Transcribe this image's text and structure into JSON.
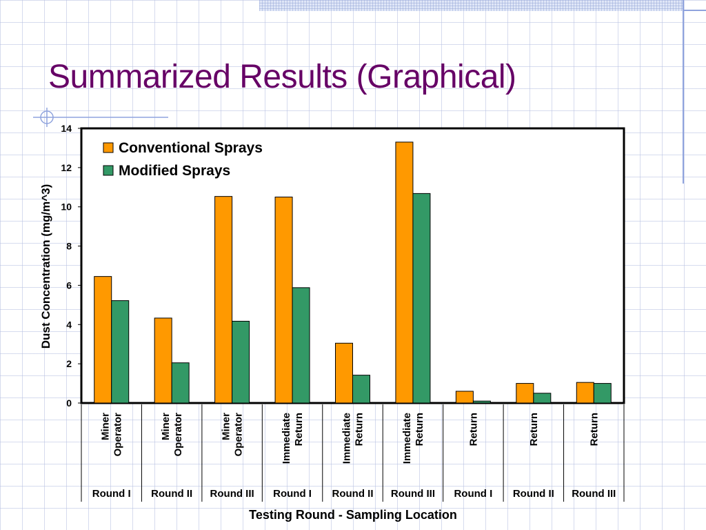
{
  "slide": {
    "title": "Summarized Results (Graphical)"
  },
  "colors": {
    "title": "#660066",
    "conventional": "#ff9900",
    "modified": "#339966",
    "ornament": "#8fa3dd"
  },
  "chart_data": {
    "type": "bar",
    "title": "",
    "xlabel": "Testing Round - Sampling Location",
    "ylabel": "Dust Concentration (mg/m^3)",
    "ylim": [
      0,
      14
    ],
    "yticks": [
      0,
      2,
      4,
      6,
      8,
      10,
      12,
      14
    ],
    "grid": false,
    "legend": "top-left",
    "categories": [
      {
        "location": [
          "Miner",
          "Operator"
        ],
        "round": "Round I"
      },
      {
        "location": [
          "Miner",
          "Operator"
        ],
        "round": "Round II"
      },
      {
        "location": [
          "Miner",
          "Operator"
        ],
        "round": "Round III"
      },
      {
        "location": [
          "Immediate",
          "Return"
        ],
        "round": "Round I"
      },
      {
        "location": [
          "Immediate",
          "Return"
        ],
        "round": "Round II"
      },
      {
        "location": [
          "Immediate",
          "Return"
        ],
        "round": "Round III"
      },
      {
        "location": [
          "Return"
        ],
        "round": "Round I"
      },
      {
        "location": [
          "Return"
        ],
        "round": "Round II"
      },
      {
        "location": [
          "Return"
        ],
        "round": "Round III"
      }
    ],
    "series": [
      {
        "name": "Conventional Sprays",
        "color": "#ff9900",
        "values": [
          6.45,
          4.33,
          10.53,
          10.5,
          3.05,
          13.3,
          0.6,
          1.0,
          1.05
        ]
      },
      {
        "name": "Modified Sprays",
        "color": "#339966",
        "values": [
          5.22,
          2.05,
          4.17,
          5.88,
          1.42,
          10.68,
          0.1,
          0.5,
          1.0
        ]
      }
    ]
  }
}
